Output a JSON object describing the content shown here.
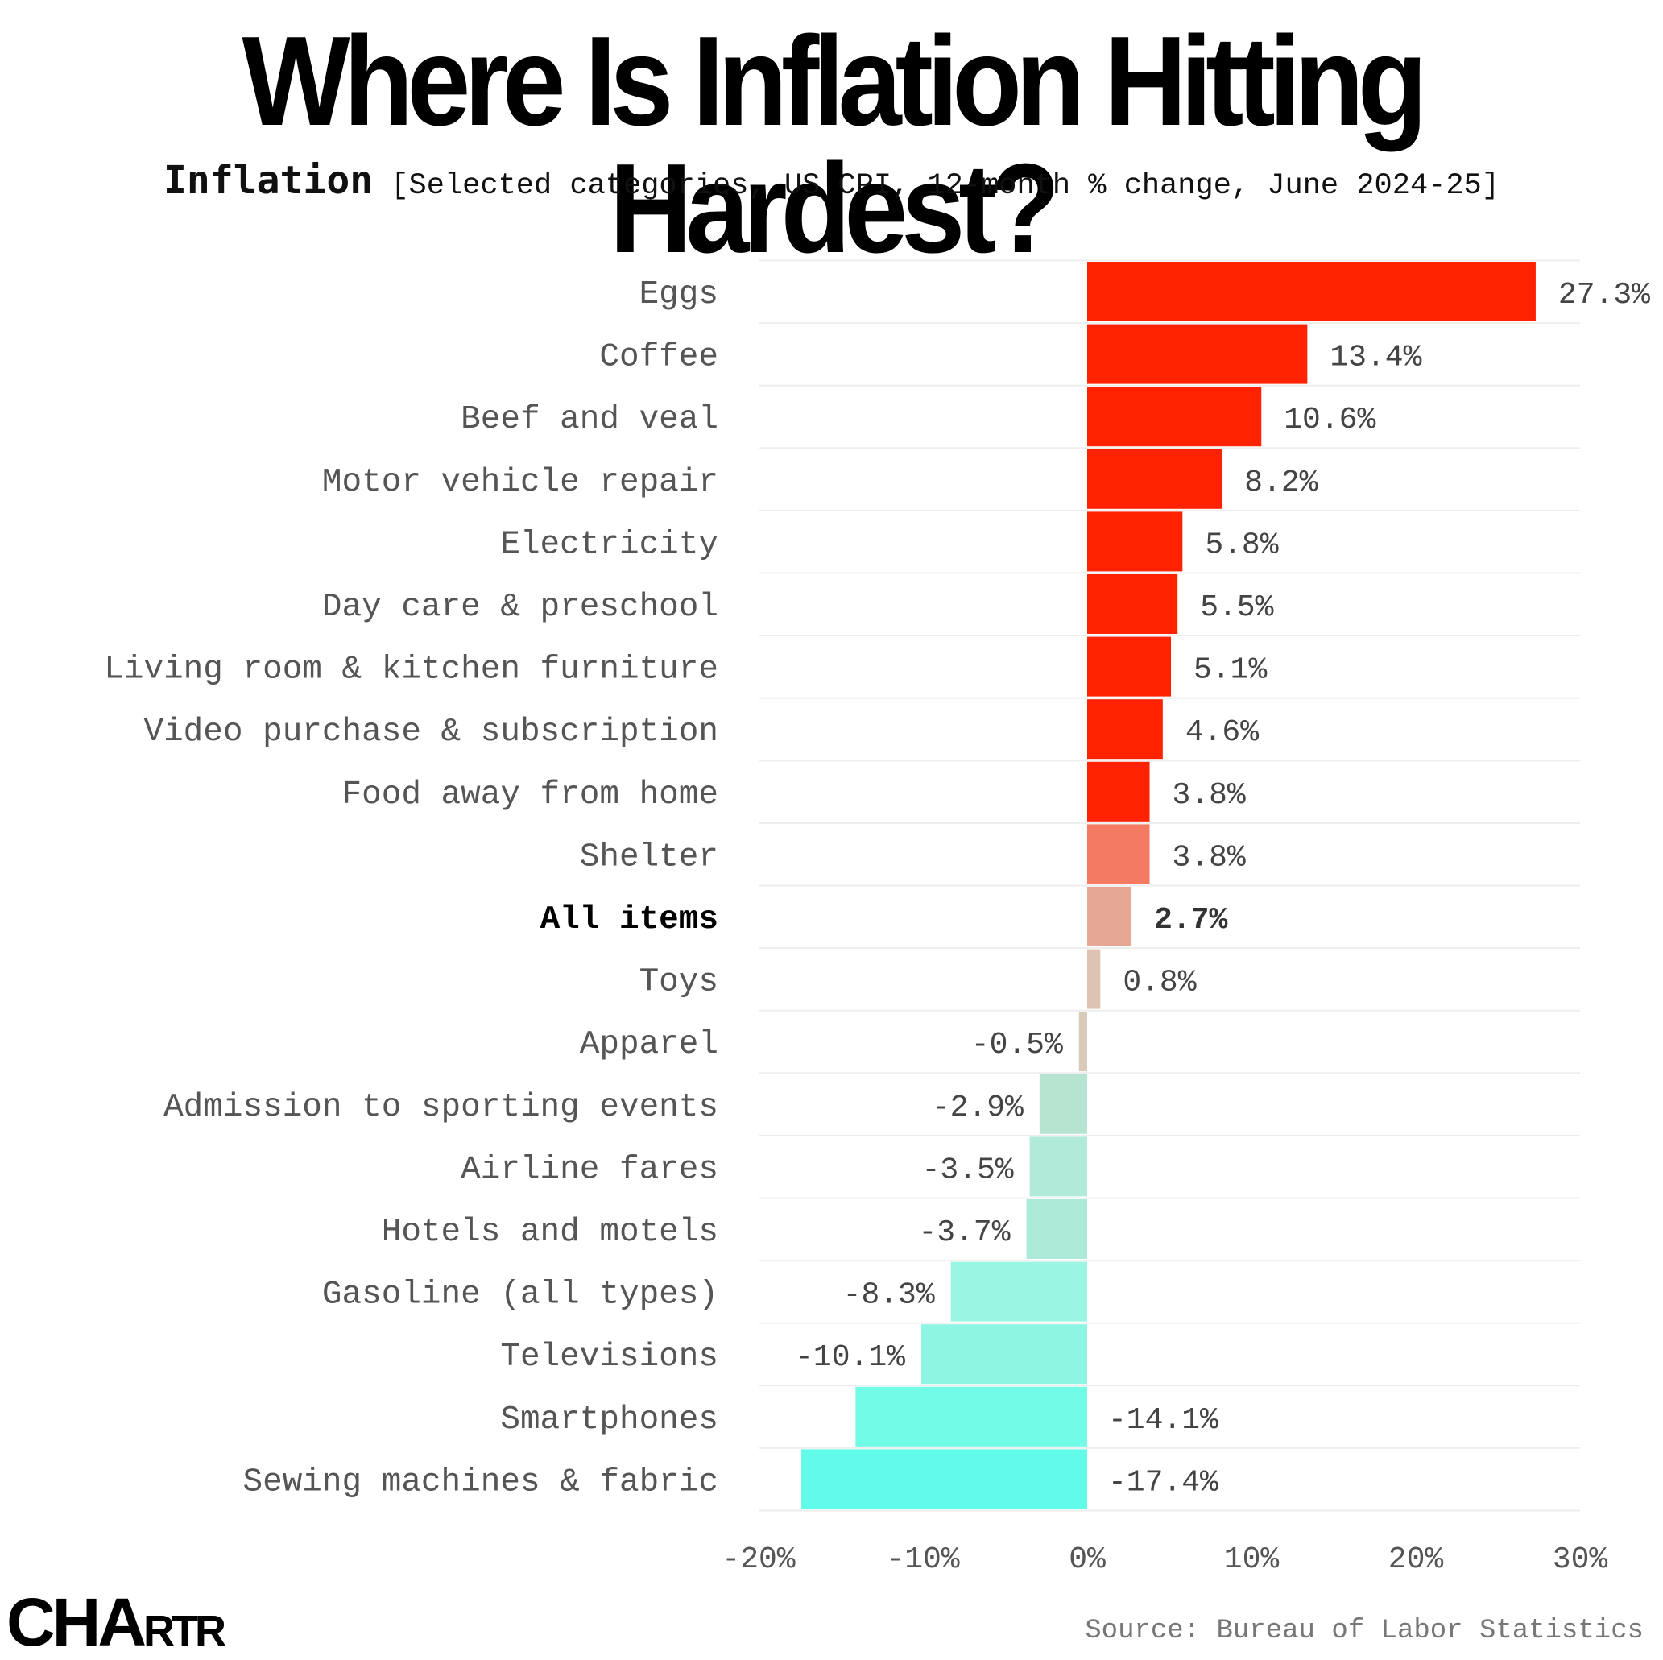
{
  "title": "Where Is Inflation Hitting Hardest?",
  "subtitle": {
    "main": "Inflation",
    "detail": "[Selected categories, US CPI, 12-month % change, June 2024-25]"
  },
  "source": "Source: Bureau of Labor Statistics",
  "logo": {
    "part1": "CHA",
    "part2": "RTR"
  },
  "chart_data": {
    "type": "bar",
    "orientation": "horizontal",
    "title": "Where Is Inflation Hitting Hardest?",
    "categories": [
      "Eggs",
      "Coffee",
      "Beef and veal",
      "Motor vehicle repair",
      "Electricity",
      "Day care & preschool",
      "Living room & kitchen furniture",
      "Video purchase & subscription",
      "Food away from home",
      "Shelter",
      "All items",
      "Toys",
      "Apparel",
      "Admission to sporting events",
      "Airline fares",
      "Hotels and motels",
      "Gasoline (all types)",
      "Televisions",
      "Smartphones",
      "Sewing machines & fabric"
    ],
    "values": [
      27.3,
      13.4,
      10.6,
      8.2,
      5.8,
      5.5,
      5.1,
      4.6,
      3.8,
      3.8,
      2.7,
      0.8,
      -0.5,
      -2.9,
      -3.5,
      -3.7,
      -8.3,
      -10.1,
      -14.1,
      -17.4
    ],
    "value_labels": [
      "27.3%",
      "13.4%",
      "10.6%",
      "8.2%",
      "5.8%",
      "5.5%",
      "5.1%",
      "4.6%",
      "3.8%",
      "3.8%",
      "2.7%",
      "0.8%",
      "-0.5%",
      "-2.9%",
      "-3.5%",
      "-3.7%",
      "-8.3%",
      "-10.1%",
      "-14.1%",
      "-17.4%"
    ],
    "colors": [
      "#ff2200",
      "#ff2200",
      "#ff2200",
      "#ff2200",
      "#ff2200",
      "#ff2200",
      "#ff2200",
      "#ff2200",
      "#ff2200",
      "#f47a62",
      "#e6a895",
      "#dfc3b2",
      "#d9cbba",
      "#b6e4d1",
      "#b1ead8",
      "#ace9d6",
      "#9af5e2",
      "#8ef5e3",
      "#72fbe7",
      "#62fbe9"
    ],
    "highlight": "All items",
    "xlim": [
      -20,
      30
    ],
    "xticks": [
      -20,
      -10,
      0,
      10,
      20,
      30
    ],
    "xtick_labels": [
      "-20%",
      "-10%",
      "0%",
      "10%",
      "20%",
      "30%"
    ],
    "grid": "horizontal row separators"
  }
}
